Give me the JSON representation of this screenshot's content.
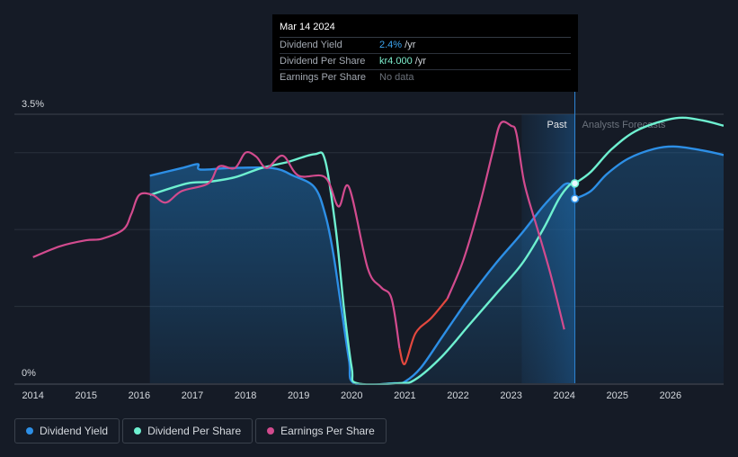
{
  "chart_data": {
    "type": "line",
    "title": "",
    "y_axis": {
      "ticks": [
        {
          "value": 3.5,
          "label": "3.5%"
        },
        {
          "value": 0,
          "label": "0%"
        }
      ],
      "ylim": [
        0,
        3.5
      ],
      "gridlines": [
        1,
        2,
        3
      ]
    },
    "x_axis": {
      "xlim": [
        2013.65,
        2027.0
      ],
      "ticks": [
        {
          "value": 2014,
          "label": "2014"
        },
        {
          "value": 2015,
          "label": "2015"
        },
        {
          "value": 2016,
          "label": "2016"
        },
        {
          "value": 2017,
          "label": "2017"
        },
        {
          "value": 2018,
          "label": "2018"
        },
        {
          "value": 2019,
          "label": "2019"
        },
        {
          "value": 2020,
          "label": "2020"
        },
        {
          "value": 2021,
          "label": "2021"
        },
        {
          "value": 2022,
          "label": "2022"
        },
        {
          "value": 2023,
          "label": "2023"
        },
        {
          "value": 2024,
          "label": "2024"
        },
        {
          "value": 2025,
          "label": "2025"
        },
        {
          "value": 2026,
          "label": "2026"
        }
      ]
    },
    "regions": {
      "past_label": "Past",
      "forecast_label": "Analysts Forecasts",
      "now": 2024.2,
      "highlight_start": 2023.2
    },
    "series": [
      {
        "name": "Dividend Yield",
        "color": "#2d8fe6",
        "fill": true,
        "points": [
          [
            2016.2,
            2.7
          ],
          [
            2016.8,
            2.8
          ],
          [
            2017.1,
            2.85
          ],
          [
            2017.15,
            2.78
          ],
          [
            2017.7,
            2.8
          ],
          [
            2018.5,
            2.8
          ],
          [
            2018.9,
            2.7
          ],
          [
            2019.3,
            2.55
          ],
          [
            2019.5,
            2.2
          ],
          [
            2019.65,
            1.7
          ],
          [
            2019.8,
            1.0
          ],
          [
            2019.95,
            0.3
          ],
          [
            2020.05,
            0.0
          ],
          [
            2020.8,
            0.0
          ],
          [
            2021.0,
            0.02
          ],
          [
            2021.3,
            0.2
          ],
          [
            2021.7,
            0.6
          ],
          [
            2022.2,
            1.1
          ],
          [
            2022.7,
            1.55
          ],
          [
            2023.2,
            1.95
          ],
          [
            2023.6,
            2.3
          ],
          [
            2023.9,
            2.52
          ],
          [
            2024.05,
            2.6
          ],
          [
            2024.18,
            2.55
          ],
          [
            2024.2,
            2.4
          ]
        ]
      },
      {
        "name": "Dividend Yield Forecast",
        "color": "#2d8fe6",
        "fill": true,
        "forecast": true,
        "points": [
          [
            2024.2,
            2.4
          ],
          [
            2024.5,
            2.5
          ],
          [
            2024.8,
            2.72
          ],
          [
            2025.2,
            2.92
          ],
          [
            2025.7,
            3.05
          ],
          [
            2026.1,
            3.08
          ],
          [
            2026.6,
            3.03
          ],
          [
            2027.0,
            2.97
          ]
        ]
      },
      {
        "name": "Dividend Per Share",
        "color": "#6ef0d0",
        "fill": false,
        "points": [
          [
            2016.2,
            2.45
          ],
          [
            2016.9,
            2.6
          ],
          [
            2017.3,
            2.62
          ],
          [
            2017.8,
            2.68
          ],
          [
            2018.3,
            2.8
          ],
          [
            2018.8,
            2.88
          ],
          [
            2019.3,
            2.98
          ],
          [
            2019.5,
            2.9
          ],
          [
            2019.7,
            2.0
          ],
          [
            2019.85,
            1.0
          ],
          [
            2020.0,
            0.2
          ],
          [
            2020.1,
            0.0
          ],
          [
            2020.9,
            0.0
          ],
          [
            2021.2,
            0.05
          ],
          [
            2021.7,
            0.35
          ],
          [
            2022.2,
            0.75
          ],
          [
            2022.7,
            1.15
          ],
          [
            2023.2,
            1.55
          ],
          [
            2023.6,
            2.0
          ],
          [
            2023.9,
            2.4
          ],
          [
            2024.1,
            2.58
          ],
          [
            2024.2,
            2.6
          ]
        ]
      },
      {
        "name": "Dividend Per Share Forecast",
        "color": "#6ef0d0",
        "fill": false,
        "forecast": true,
        "points": [
          [
            2024.2,
            2.6
          ],
          [
            2024.5,
            2.75
          ],
          [
            2024.9,
            3.05
          ],
          [
            2025.4,
            3.3
          ],
          [
            2026.1,
            3.45
          ],
          [
            2026.6,
            3.42
          ],
          [
            2027.0,
            3.35
          ]
        ]
      },
      {
        "name": "Earnings Per Share",
        "color": "#d24b8e",
        "neg_color": "#e3483e",
        "fill": false,
        "points": [
          [
            2014.0,
            1.64
          ],
          [
            2014.5,
            1.78
          ],
          [
            2015.0,
            1.86
          ],
          [
            2015.3,
            1.88
          ],
          [
            2015.7,
            2.0
          ],
          [
            2015.85,
            2.2
          ],
          [
            2016.0,
            2.45
          ],
          [
            2016.25,
            2.45
          ],
          [
            2016.5,
            2.35
          ],
          [
            2016.8,
            2.5
          ],
          [
            2017.3,
            2.6
          ],
          [
            2017.5,
            2.82
          ],
          [
            2017.8,
            2.8
          ],
          [
            2018.0,
            3.0
          ],
          [
            2018.2,
            2.95
          ],
          [
            2018.4,
            2.8
          ],
          [
            2018.7,
            2.96
          ],
          [
            2019.0,
            2.7
          ],
          [
            2019.5,
            2.68
          ],
          [
            2019.75,
            2.3
          ],
          [
            2019.95,
            2.55
          ],
          [
            2020.3,
            1.5
          ],
          [
            2020.55,
            1.25
          ],
          [
            2020.75,
            1.1
          ],
          [
            2020.9,
            0.45
          ],
          [
            2021.0,
            0.25
          ],
          [
            2021.2,
            0.65
          ],
          [
            2021.5,
            0.85
          ],
          [
            2021.8,
            1.1
          ],
          [
            2022.1,
            1.6
          ],
          [
            2022.4,
            2.3
          ],
          [
            2022.65,
            3.0
          ],
          [
            2022.8,
            3.38
          ],
          [
            2023.0,
            3.35
          ],
          [
            2023.1,
            3.25
          ],
          [
            2023.25,
            2.6
          ],
          [
            2023.5,
            2.0
          ],
          [
            2023.75,
            1.4
          ],
          [
            2024.0,
            0.7
          ]
        ]
      }
    ]
  },
  "tooltip": {
    "date": "Mar 14 2024",
    "rows": [
      {
        "label": "Dividend Yield",
        "value": "2.4%",
        "suffix": " /yr"
      },
      {
        "label": "Dividend Per Share",
        "value": "kr4.000",
        "suffix": " /yr"
      },
      {
        "label": "Earnings Per Share",
        "value": "No data"
      }
    ]
  },
  "legend": [
    {
      "label": "Dividend Yield",
      "color": "#2d8fe6"
    },
    {
      "label": "Dividend Per Share",
      "color": "#6ef0d0"
    },
    {
      "label": "Earnings Per Share",
      "color": "#d24b8e"
    }
  ]
}
